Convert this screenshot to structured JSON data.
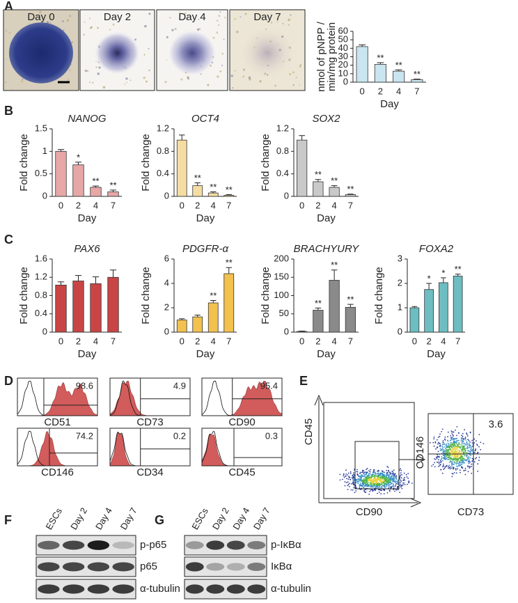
{
  "panels": {
    "letters": [
      "A",
      "B",
      "C",
      "D",
      "E",
      "F",
      "G"
    ]
  },
  "micrographs": [
    "Day 0",
    "Day 2",
    "Day 4",
    "Day 7"
  ],
  "chart_data": [
    {
      "type": "bar",
      "y_label": [
        "nmol of pNPP /",
        "min/mg protein"
      ],
      "x_label": "Day",
      "categories": [
        "0",
        "2",
        "4",
        "7"
      ],
      "values": [
        42,
        21,
        13,
        3
      ],
      "errors": [
        2,
        2,
        1.5,
        0.6
      ],
      "significance": [
        null,
        "**",
        "**",
        "**"
      ],
      "color": "#c9e5ef",
      "ylim": [
        0,
        60
      ],
      "yticks": [
        0,
        10,
        20,
        30,
        40,
        50,
        60
      ]
    },
    {
      "type": "bar",
      "title": "NANOG",
      "italic_title": true,
      "y_label": "Fold change",
      "x_label": "Day",
      "categories": [
        "0",
        "2",
        "4",
        "7"
      ],
      "values": [
        1,
        0.7,
        0.2,
        0.1
      ],
      "errors": [
        0.04,
        0.06,
        0.03,
        0.04
      ],
      "significance": [
        null,
        "*",
        "**",
        "**"
      ],
      "color": "#e7a7a7",
      "ylim": [
        0,
        1.5
      ],
      "yticks": [
        0,
        0.5,
        1,
        1.5
      ]
    },
    {
      "type": "bar",
      "title": "OCT4",
      "italic_title": true,
      "y_label": "Fold change",
      "x_label": "Day",
      "categories": [
        "0",
        "2",
        "4",
        "7"
      ],
      "values": [
        1,
        0.19,
        0.06,
        0.02
      ],
      "errors": [
        0.09,
        0.05,
        0.02,
        0.01
      ],
      "significance": [
        null,
        "**",
        "**",
        "**"
      ],
      "color": "#f5dca2",
      "ylim": [
        0,
        1.2
      ],
      "yticks": [
        0,
        0.4,
        0.8,
        1.2
      ]
    },
    {
      "type": "bar",
      "title": "SOX2",
      "italic_title": true,
      "y_label": "Fold change",
      "x_label": "Day",
      "categories": [
        "0",
        "2",
        "4",
        "7"
      ],
      "values": [
        1,
        0.26,
        0.16,
        0.03
      ],
      "errors": [
        0.08,
        0.04,
        0.03,
        0.01
      ],
      "significance": [
        null,
        "**",
        "**",
        "**"
      ],
      "color": "#c9c9c9",
      "ylim": [
        0,
        1.2
      ],
      "yticks": [
        0,
        0.4,
        0.8,
        1.2
      ]
    },
    {
      "type": "bar",
      "title": "PAX6",
      "italic_title": true,
      "y_label": "Fold change",
      "x_label": "Day",
      "categories": [
        "0",
        "2",
        "4",
        "7"
      ],
      "values": [
        1.03,
        1.12,
        1.06,
        1.2
      ],
      "errors": [
        0.07,
        0.12,
        0.15,
        0.16
      ],
      "significance": [
        null,
        null,
        null,
        null
      ],
      "color": "#c94545",
      "ylim": [
        0,
        1.6
      ],
      "yticks": [
        0,
        0.4,
        0.8,
        1.2,
        1.6
      ]
    },
    {
      "type": "bar",
      "title": "PDGFR-α",
      "italic_title": true,
      "y_label": "Fold change",
      "x_label": "Day",
      "categories": [
        "0",
        "2",
        "4",
        "7"
      ],
      "values": [
        1,
        1.25,
        2.4,
        4.8
      ],
      "errors": [
        0.1,
        0.15,
        0.2,
        0.5
      ],
      "significance": [
        null,
        null,
        "**",
        "**"
      ],
      "color": "#f2c14e",
      "ylim": [
        0,
        6
      ],
      "yticks": [
        0,
        2,
        4,
        6
      ]
    },
    {
      "type": "bar",
      "title": "BRACHYURY",
      "italic_title": true,
      "y_label": "Fold change",
      "x_label": "Day",
      "categories": [
        "0",
        "2",
        "4",
        "7"
      ],
      "values": [
        2,
        60,
        142,
        68
      ],
      "errors": [
        1,
        6,
        28,
        8
      ],
      "significance": [
        null,
        "**",
        "**",
        "**"
      ],
      "color": "#8a8a8a",
      "ylim": [
        0,
        200
      ],
      "yticks": [
        0,
        50,
        100,
        150,
        200
      ]
    },
    {
      "type": "bar",
      "title": "FOXA2",
      "italic_title": true,
      "y_label": "Fold change",
      "x_label": "Day",
      "categories": [
        "0",
        "2",
        "4",
        "7"
      ],
      "values": [
        1,
        1.75,
        2.03,
        2.3
      ],
      "errors": [
        0.05,
        0.25,
        0.2,
        0.08
      ],
      "significance": [
        null,
        "*",
        "*",
        "**"
      ],
      "color": "#6dbdc1",
      "ylim": [
        0,
        3
      ],
      "yticks": [
        0,
        1,
        2,
        3
      ]
    }
  ],
  "flow_histograms": [
    {
      "marker": "CD51",
      "percent": 98.6
    },
    {
      "marker": "CD73",
      "percent": 4.9
    },
    {
      "marker": "CD90",
      "percent": 95.4
    },
    {
      "marker": "CD146",
      "percent": 74.2
    },
    {
      "marker": "CD34",
      "percent": 0.2
    },
    {
      "marker": "CD45",
      "percent": 0.3
    }
  ],
  "flow_scatter": [
    {
      "y_label": "CD45",
      "x_label": "CD90"
    },
    {
      "y_label": "CD146",
      "x_label": "CD73",
      "percent": 3.6
    }
  ],
  "blots": [
    {
      "lanes": [
        "ESCs",
        "Day 2",
        "Day 4",
        "Day 7"
      ],
      "proteins": [
        "p-p65",
        "p65",
        "α-tubulin"
      ]
    },
    {
      "lanes": [
        "ESCs",
        "Day 2",
        "Day 4",
        "Day 7"
      ],
      "proteins": [
        "p-IκBα",
        "IκBα",
        "α-tubulin"
      ]
    }
  ]
}
